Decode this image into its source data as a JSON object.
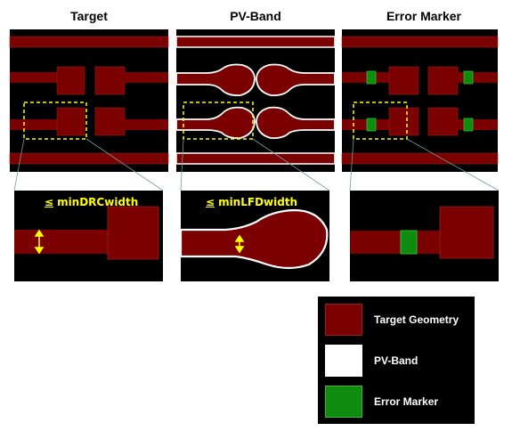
{
  "panels": [
    {
      "title": "Target"
    },
    {
      "title": "PV-Band"
    },
    {
      "title": "Error Marker"
    }
  ],
  "zoom_labels": {
    "drc_symbol": "≤",
    "drc_text": "minDRCwidth",
    "lfd_symbol": "≤",
    "lfd_text": "minLFDwidth"
  },
  "legend": {
    "items": [
      {
        "label": "Target Geometry",
        "color": "#7b0000",
        "border": "#9a2020"
      },
      {
        "label": "PV-Band",
        "color": "#ffffff",
        "border": "#ffffff"
      },
      {
        "label": "Error Marker",
        "color": "#0d8c0d",
        "border": "#34b834"
      }
    ]
  },
  "colors": {
    "background": "#000000",
    "geometry": "#7b0000",
    "pv_band": "#ffffff",
    "error_marker": "#0d8c0d",
    "highlight": "#ffff00"
  }
}
